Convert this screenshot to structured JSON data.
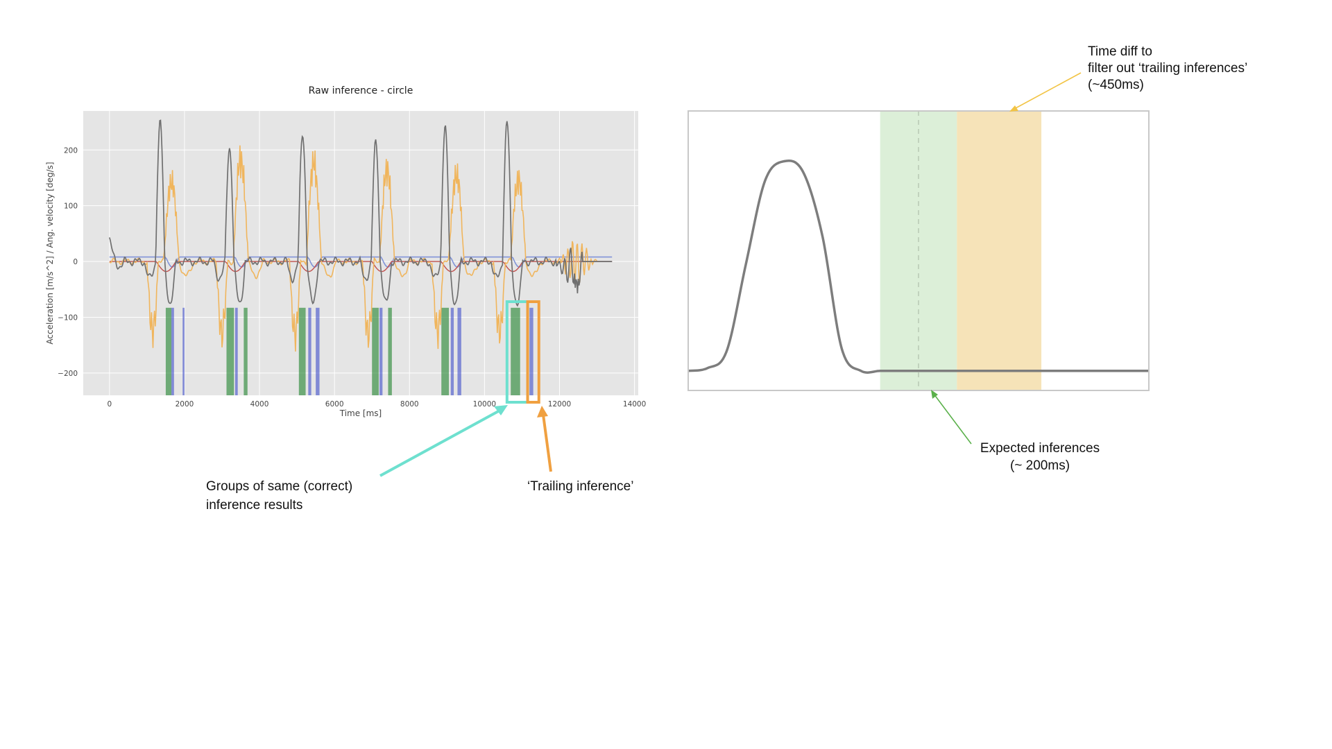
{
  "chart_data": [
    {
      "type": "line",
      "title": "Raw inference - circle",
      "xlabel": "Time [ms]",
      "ylabel": "Acceleration [m/s^2]  /  Ang. velocity [deg/s]",
      "xlim": [
        -700,
        14100
      ],
      "ylim": [
        -240,
        270
      ],
      "xticks": [
        0,
        2000,
        4000,
        6000,
        8000,
        10000,
        12000,
        14000
      ],
      "yticks": [
        -200,
        -100,
        0,
        100,
        200
      ],
      "grid": true,
      "colors": {
        "background": "#e5e5e5",
        "grid": "#ffffff",
        "gray": "#6f6f6f",
        "orange": "#f0b55c",
        "red": "#c0504d",
        "blue": "#8093d8",
        "green": "#2e8b3a",
        "inference_blue": "#3040c8"
      },
      "gesture_peaks": [
        {
          "t": 1350,
          "gray_peak": 250,
          "orange_peak": 170
        },
        {
          "t": 3200,
          "gray_peak": 205,
          "orange_peak": 215
        },
        {
          "t": 5150,
          "gray_peak": 230,
          "orange_peak": 205
        },
        {
          "t": 7100,
          "gray_peak": 215,
          "orange_peak": 190
        },
        {
          "t": 8950,
          "gray_peak": 240,
          "orange_peak": 185
        },
        {
          "t": 10600,
          "gray_peak": 250,
          "orange_peak": 175
        }
      ],
      "gray_series_end_ms": 13400,
      "inference_bars": [
        {
          "start": 1500,
          "end": 1650,
          "color": "green"
        },
        {
          "start": 1650,
          "end": 1720,
          "color": "blue"
        },
        {
          "start": 1950,
          "end": 2000,
          "color": "blue"
        },
        {
          "start": 3120,
          "end": 3320,
          "color": "green"
        },
        {
          "start": 3350,
          "end": 3420,
          "color": "blue"
        },
        {
          "start": 3580,
          "end": 3680,
          "color": "green"
        },
        {
          "start": 5050,
          "end": 5230,
          "color": "green"
        },
        {
          "start": 5300,
          "end": 5380,
          "color": "blue"
        },
        {
          "start": 5500,
          "end": 5600,
          "color": "blue"
        },
        {
          "start": 7000,
          "end": 7180,
          "color": "green"
        },
        {
          "start": 7200,
          "end": 7280,
          "color": "blue"
        },
        {
          "start": 7430,
          "end": 7530,
          "color": "green"
        },
        {
          "start": 8850,
          "end": 9050,
          "color": "green"
        },
        {
          "start": 9100,
          "end": 9180,
          "color": "blue"
        },
        {
          "start": 9280,
          "end": 9380,
          "color": "blue"
        },
        {
          "start": 10700,
          "end": 10950,
          "color": "green"
        },
        {
          "start": 11200,
          "end": 11300,
          "color": "blue"
        }
      ],
      "highlight_boxes": [
        {
          "label": "Groups of same (correct) inference results",
          "x_start": 10600,
          "x_end": 11150,
          "color": "#6ee0cf"
        },
        {
          "label": "‘Trailing inference’",
          "x_start": 11150,
          "x_end": 11450,
          "color": "#f0a040"
        }
      ]
    },
    {
      "type": "area",
      "title": "",
      "xlabel": "",
      "ylabel": "",
      "xlim": [
        0,
        1200
      ],
      "ylim": [
        0,
        1
      ],
      "x": [
        0,
        50,
        100,
        150,
        200,
        250,
        300,
        350,
        400,
        450,
        500,
        550,
        600,
        650,
        700,
        750,
        800,
        850,
        900,
        950,
        1000,
        1050,
        1100,
        1150,
        1200
      ],
      "y": [
        0.07,
        0.08,
        0.14,
        0.45,
        0.75,
        0.82,
        0.78,
        0.55,
        0.15,
        0.07,
        0.07,
        0.07,
        0.07,
        0.07,
        0.07,
        0.07,
        0.07,
        0.07,
        0.07,
        0.07,
        0.07,
        0.07,
        0.07,
        0.07,
        0.07
      ],
      "grid": false,
      "regions": [
        {
          "label": "Expected inferences\n(~ 200ms)",
          "start": 500,
          "end": 700,
          "color": "#dcefd8"
        },
        {
          "label": "Time diff to\nfilter out ‘trailing inferences’\n(~450ms)",
          "start": 700,
          "end": 920,
          "color": "#f6e3b8"
        }
      ],
      "dashed_marker_x": 600,
      "colors": {
        "line": "#7d7d7d",
        "frame": "#c8c8c8",
        "dashed": "#b8c8b4",
        "green_arrow": "#5ab04a",
        "yellow_arrow": "#f2c445"
      }
    }
  ],
  "annotations": {
    "groups_line1": "Groups of same (correct)",
    "groups_line2": "inference results",
    "trailing": "‘Trailing inference’",
    "expected_line1": "Expected inferences",
    "expected_line2": "(~ 200ms)",
    "timediff_line1": "Time diff to",
    "timediff_line2": "filter out ‘trailing inferences’",
    "timediff_line3": "(~450ms)"
  }
}
